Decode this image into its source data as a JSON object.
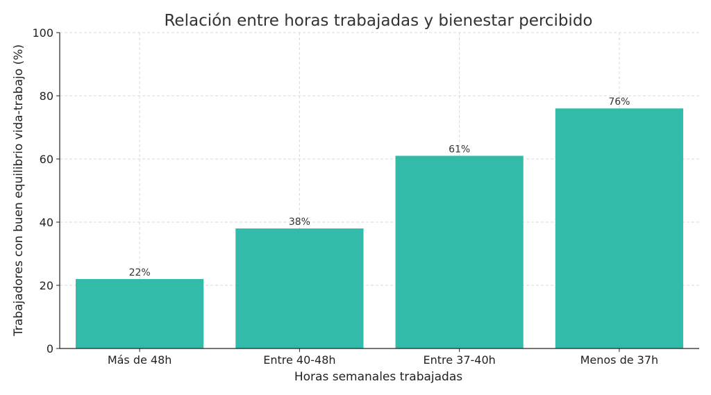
{
  "chart_data": {
    "type": "bar",
    "title": "Relación entre horas trabajadas y bienestar percibido",
    "xlabel": "Horas semanales trabajadas",
    "ylabel": "Trabajadores con buen equilibrio vida-trabajo (%)",
    "categories": [
      "Más de 48h",
      "Entre 40-48h",
      "Entre 37-40h",
      "Menos de 37h"
    ],
    "values": [
      22,
      38,
      61,
      76
    ],
    "data_labels": [
      "22%",
      "38%",
      "61%",
      "76%"
    ],
    "ylim": [
      0,
      100
    ],
    "yticks": [
      0,
      20,
      40,
      60,
      80,
      100
    ],
    "grid": true,
    "bar_color": "#33bbaa"
  }
}
